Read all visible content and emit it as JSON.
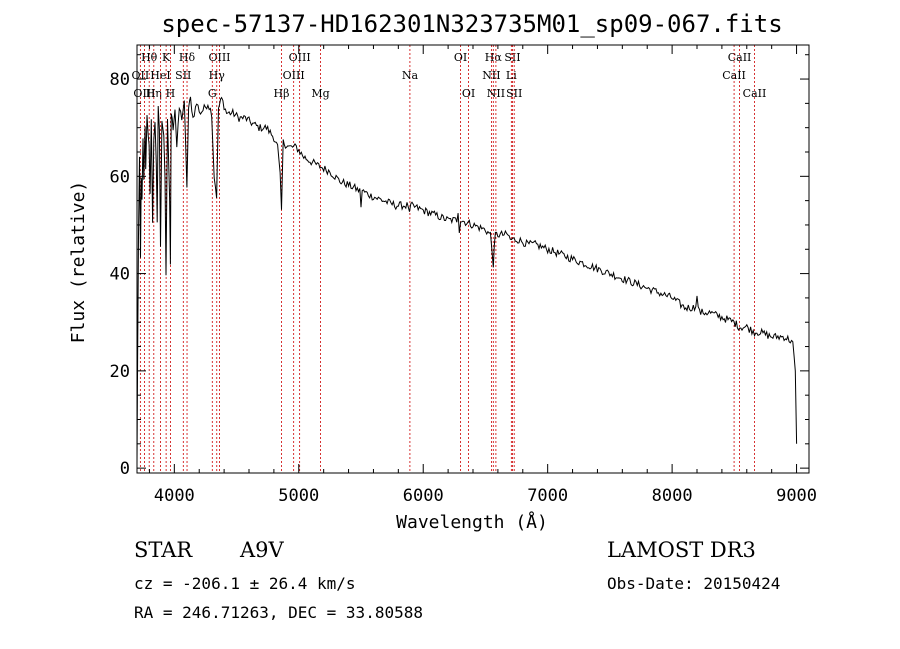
{
  "chart_data": {
    "type": "line",
    "title": "spec-57137-HD162301N323735M01_sp09-067.fits",
    "xlabel": "Wavelength (Å)",
    "ylabel": "Flux (relative)",
    "xlim": [
      3700,
      9100
    ],
    "ylim": [
      -1,
      87
    ],
    "x_ticks": [
      4000,
      5000,
      6000,
      7000,
      8000,
      9000
    ],
    "y_ticks": [
      0,
      20,
      40,
      60,
      80
    ],
    "series": [
      {
        "name": "spectrum",
        "x": [
          3700,
          3705,
          3712,
          3720,
          3728,
          3734,
          3740,
          3748,
          3755,
          3765,
          3770,
          3780,
          3790,
          3797,
          3805,
          3815,
          3825,
          3835,
          3845,
          3855,
          3862,
          3870,
          3880,
          3889,
          3900,
          3915,
          3925,
          3933,
          3945,
          3955,
          3962,
          3968,
          3975,
          3990,
          4005,
          4020,
          4040,
          4060,
          4080,
          4101,
          4115,
          4130,
          4150,
          4180,
          4210,
          4240,
          4270,
          4300,
          4320,
          4340,
          4355,
          4380,
          4420,
          4470,
          4520,
          4570,
          4620,
          4680,
          4740,
          4800,
          4830,
          4850,
          4861,
          4875,
          4920,
          4980,
          5040,
          5100,
          5170,
          5250,
          5330,
          5420,
          5490,
          5500,
          5510,
          5580,
          5680,
          5780,
          5880,
          5890,
          5900,
          6000,
          6100,
          6200,
          6270,
          6280,
          6290,
          6300,
          6400,
          6500,
          6540,
          6563,
          6580,
          6620,
          6680,
          6700,
          6760,
          6840,
          6900,
          7000,
          7100,
          7200,
          7300,
          7400,
          7500,
          7600,
          7700,
          7800,
          7900,
          8000,
          8100,
          8180,
          8200,
          8220,
          8300,
          8400,
          8498,
          8542,
          8600,
          8662,
          8700,
          8800,
          8900,
          8970,
          8990,
          9000
        ],
        "values": [
          1,
          22,
          48,
          64,
          43,
          60,
          55,
          67,
          59,
          70,
          62,
          72,
          68,
          66,
          56,
          72,
          50,
          68,
          71,
          63,
          51,
          74,
          69,
          45,
          72,
          68,
          60,
          40,
          72,
          62,
          55,
          42,
          73,
          70,
          74,
          66,
          74,
          72,
          75,
          58,
          74,
          76,
          72,
          75,
          73,
          74,
          75,
          73,
          60,
          56,
          74,
          76,
          73,
          73,
          72,
          72,
          71,
          70,
          70,
          68,
          66,
          60,
          53,
          67,
          66,
          66,
          64,
          63,
          62,
          61,
          59,
          58,
          57,
          54,
          57,
          56,
          55,
          54,
          54,
          52,
          54,
          53,
          52,
          51,
          51,
          53,
          49,
          51,
          50,
          49,
          48,
          42,
          48,
          48,
          48,
          47,
          47,
          46,
          46,
          45,
          44,
          43,
          42,
          41,
          40,
          39,
          38,
          37,
          36,
          35,
          33,
          33,
          35,
          32,
          32,
          31,
          30,
          29,
          29,
          28,
          28,
          27,
          27,
          26,
          20,
          5
        ]
      }
    ],
    "line_markers": [
      {
        "label": "OII",
        "wavelength": 3727,
        "row": 2
      },
      {
        "label": "Hθ",
        "wavelength": 3798,
        "row": 1
      },
      {
        "label": "OIII",
        "wavelength": 3760,
        "row": 3
      },
      {
        "label": "Hη",
        "wavelength": 3835,
        "row": 3
      },
      {
        "label": "HeI",
        "wavelength": 3889,
        "row": 2
      },
      {
        "label": "K",
        "wavelength": 3934,
        "row": 1
      },
      {
        "label": "SII",
        "wavelength": 4072,
        "row": 2
      },
      {
        "label": "H",
        "wavelength": 3969,
        "row": 3
      },
      {
        "label": "Hδ",
        "wavelength": 4102,
        "row": 1
      },
      {
        "label": "OIII",
        "wavelength": 4363,
        "row": 1
      },
      {
        "label": "Hγ",
        "wavelength": 4341,
        "row": 2
      },
      {
        "label": "G",
        "wavelength": 4305,
        "row": 3
      },
      {
        "label": "OIII",
        "wavelength": 5007,
        "row": 1
      },
      {
        "label": "OIII",
        "wavelength": 4959,
        "row": 2
      },
      {
        "label": "Hβ",
        "wavelength": 4861,
        "row": 3
      },
      {
        "label": "Mg",
        "wavelength": 5175,
        "row": 3
      },
      {
        "label": "Na",
        "wavelength": 5893,
        "row": 2
      },
      {
        "label": "OI",
        "wavelength": 6300,
        "row": 1
      },
      {
        "label": "OI",
        "wavelength": 6364,
        "row": 3
      },
      {
        "label": "Hα",
        "wavelength": 6563,
        "row": 1
      },
      {
        "label": "NII",
        "wavelength": 6548,
        "row": 2
      },
      {
        "label": "NII",
        "wavelength": 6584,
        "row": 3
      },
      {
        "label": "SII",
        "wavelength": 6717,
        "row": 1
      },
      {
        "label": "Li",
        "wavelength": 6708,
        "row": 2
      },
      {
        "label": "SII",
        "wavelength": 6731,
        "row": 3
      },
      {
        "label": "CaII",
        "wavelength": 8542,
        "row": 1
      },
      {
        "label": "CaII",
        "wavelength": 8498,
        "row": 2
      },
      {
        "label": "CaII",
        "wavelength": 8662,
        "row": 3
      }
    ]
  },
  "info": {
    "class": "STAR",
    "subclass": "A9V",
    "survey": "LAMOST DR3",
    "cz": "cz = -206.1 ± 26.4 km/s",
    "obs_date": "Obs-Date: 20150424",
    "coords": "RA = 246.71263, DEC =  33.80588"
  },
  "colors": {
    "spectrum": "#000000",
    "marker": "#cc0000",
    "axis": "#000000"
  }
}
